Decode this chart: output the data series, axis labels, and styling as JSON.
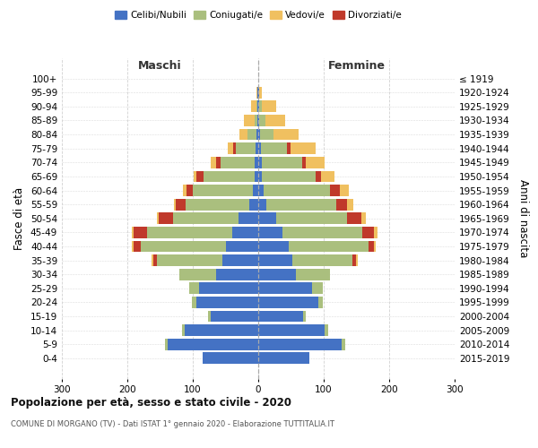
{
  "age_groups": [
    "0-4",
    "5-9",
    "10-14",
    "15-19",
    "20-24",
    "25-29",
    "30-34",
    "35-39",
    "40-44",
    "45-49",
    "50-54",
    "55-59",
    "60-64",
    "65-69",
    "70-74",
    "75-79",
    "80-84",
    "85-89",
    "90-94",
    "95-99",
    "100+"
  ],
  "birth_years": [
    "2015-2019",
    "2010-2014",
    "2005-2009",
    "2000-2004",
    "1995-1999",
    "1990-1994",
    "1985-1989",
    "1980-1984",
    "1975-1979",
    "1970-1974",
    "1965-1969",
    "1960-1964",
    "1955-1959",
    "1950-1954",
    "1945-1949",
    "1940-1944",
    "1935-1939",
    "1930-1934",
    "1925-1929",
    "1920-1924",
    "≤ 1919"
  ],
  "colors": {
    "celibe": "#4472C4",
    "coniugato": "#AABF7E",
    "vedovo": "#F0C060",
    "divorziato": "#C0392B"
  },
  "maschi": {
    "celibe": [
      85,
      138,
      112,
      72,
      95,
      90,
      65,
      55,
      50,
      40,
      30,
      14,
      8,
      6,
      5,
      4,
      3,
      1,
      1,
      1,
      0
    ],
    "coniugato": [
      0,
      5,
      5,
      5,
      6,
      15,
      55,
      100,
      130,
      130,
      100,
      97,
      92,
      78,
      52,
      30,
      14,
      5,
      2,
      0,
      0
    ],
    "vedovo": [
      0,
      0,
      0,
      0,
      0,
      0,
      0,
      3,
      3,
      3,
      3,
      3,
      5,
      5,
      8,
      8,
      12,
      16,
      8,
      2,
      0
    ],
    "divorziato": [
      0,
      0,
      0,
      0,
      0,
      0,
      0,
      5,
      10,
      20,
      22,
      15,
      10,
      10,
      8,
      5,
      0,
      0,
      0,
      0,
      0
    ]
  },
  "femmine": {
    "nubile": [
      78,
      128,
      102,
      68,
      92,
      82,
      58,
      52,
      47,
      37,
      28,
      12,
      8,
      6,
      5,
      4,
      3,
      1,
      1,
      1,
      0
    ],
    "coniugata": [
      0,
      5,
      5,
      5,
      6,
      16,
      52,
      92,
      122,
      122,
      107,
      107,
      102,
      82,
      62,
      40,
      20,
      10,
      4,
      1,
      0
    ],
    "vedova": [
      0,
      0,
      0,
      0,
      0,
      0,
      0,
      3,
      3,
      5,
      8,
      10,
      15,
      20,
      30,
      38,
      38,
      30,
      22,
      3,
      0
    ],
    "divorziata": [
      0,
      0,
      0,
      0,
      0,
      0,
      0,
      5,
      8,
      18,
      22,
      16,
      14,
      8,
      5,
      5,
      0,
      0,
      0,
      0,
      0
    ]
  },
  "xlim": 300,
  "title": "Popolazione per età, sesso e stato civile - 2020",
  "subtitle": "COMUNE DI MORGANO (TV) - Dati ISTAT 1° gennaio 2020 - Elaborazione TUTTITALIA.IT",
  "ylabel_left": "Fasce di età",
  "ylabel_right": "Anni di nascita",
  "label_maschi": "Maschi",
  "label_femmine": "Femmine",
  "legend_labels": [
    "Celibi/Nubili",
    "Coniugati/e",
    "Vedovi/e",
    "Divorziati/e"
  ],
  "bg_color": "#FFFFFF",
  "grid_color": "#CCCCCC"
}
